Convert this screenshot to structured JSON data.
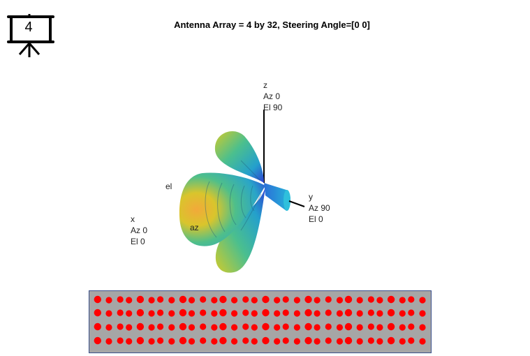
{
  "figure": {
    "number": "4",
    "icon": "presentation-screen-icon"
  },
  "title": "Antenna Array = 4 by 32, Steering Angle=[0 0]",
  "axes_labels": {
    "z": [
      "z",
      "Az 0",
      "El 90"
    ],
    "y": [
      "y",
      "Az 90",
      "El 0"
    ],
    "x": [
      "x",
      "Az 0",
      "El 0"
    ],
    "el": "el",
    "az": "az"
  },
  "array": {
    "rows": 4,
    "columns": 32,
    "element_color": "#ff0000",
    "background": "#a6a6a6"
  }
}
